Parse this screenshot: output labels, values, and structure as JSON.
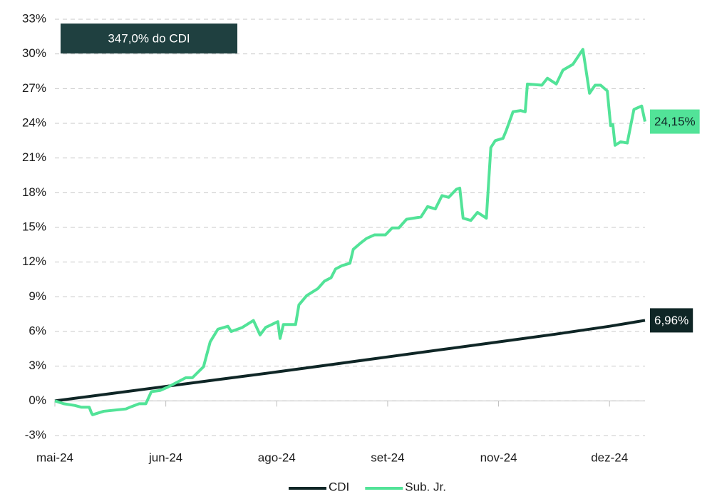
{
  "chart_data": {
    "type": "line",
    "annotation": "347,0% do CDI",
    "xlim": [
      0,
      5.32
    ],
    "xticks": [
      {
        "value": 0,
        "label": "mai-24"
      },
      {
        "value": 1,
        "label": "jun-24"
      },
      {
        "value": 2,
        "label": "ago-24"
      },
      {
        "value": 3,
        "label": "set-24"
      },
      {
        "value": 4,
        "label": "nov-24"
      },
      {
        "value": 5,
        "label": "dez-24"
      }
    ],
    "ylim": [
      -3,
      33
    ],
    "yticks": [
      {
        "value": -3,
        "label": "-3%"
      },
      {
        "value": 0,
        "label": "0%"
      },
      {
        "value": 3,
        "label": "3%"
      },
      {
        "value": 6,
        "label": "6%"
      },
      {
        "value": 9,
        "label": "9%"
      },
      {
        "value": 12,
        "label": "12%"
      },
      {
        "value": 15,
        "label": "15%"
      },
      {
        "value": 18,
        "label": "18%"
      },
      {
        "value": 21,
        "label": "21%"
      },
      {
        "value": 24,
        "label": "24%"
      },
      {
        "value": 27,
        "label": "27%"
      },
      {
        "value": 30,
        "label": "30%"
      },
      {
        "value": 33,
        "label": "33%"
      }
    ],
    "grid": true,
    "legend": "bottom",
    "series": [
      {
        "name": "CDI",
        "color": "#0f2626",
        "last_label": "6,96%",
        "label_text_color": "#ffffff",
        "x": [
          0,
          0.5,
          1,
          1.5,
          2,
          2.5,
          3,
          3.5,
          4,
          4.5,
          5,
          5.32
        ],
        "values": [
          0,
          0.62,
          1.25,
          1.88,
          2.5,
          3.15,
          3.8,
          4.45,
          5.1,
          5.75,
          6.45,
          6.96
        ]
      },
      {
        "name": "Sub. Jr.",
        "color": "#52e398",
        "last_label": "24,15%",
        "label_text_color": "#0f2626",
        "x": [
          0,
          0.08,
          0.18,
          0.24,
          0.31,
          0.33,
          0.34,
          0.44,
          0.54,
          0.64,
          0.69,
          0.76,
          0.82,
          0.87,
          0.95,
          1.02,
          1.08,
          1.18,
          1.24,
          1.34,
          1.4,
          1.47,
          1.56,
          1.59,
          1.69,
          1.79,
          1.85,
          1.9,
          2.01,
          2.03,
          2.06,
          2.17,
          2.2,
          2.27,
          2.37,
          2.43,
          2.49,
          2.53,
          2.59,
          2.66,
          2.69,
          2.75,
          2.81,
          2.88,
          2.98,
          3.04,
          3.1,
          3.17,
          3.3,
          3.36,
          3.43,
          3.49,
          3.55,
          3.62,
          3.65,
          3.68,
          3.75,
          3.81,
          3.89,
          3.93,
          3.97,
          4.04,
          4.07,
          4.13,
          4.2,
          4.24,
          4.26,
          4.39,
          4.44,
          4.52,
          4.58,
          4.67,
          4.76,
          4.82,
          4.87,
          4.92,
          4.98,
          5.01,
          5.03,
          5.05,
          5.1,
          5.16,
          5.22,
          5.29,
          5.32
        ],
        "values": [
          0,
          -0.25,
          -0.4,
          -0.55,
          -0.55,
          -1.05,
          -1.2,
          -0.9,
          -0.8,
          -0.7,
          -0.5,
          -0.25,
          -0.25,
          0.8,
          0.9,
          1.2,
          1.5,
          2.0,
          2.0,
          2.95,
          5.1,
          6.2,
          6.45,
          6.0,
          6.35,
          6.95,
          5.7,
          6.35,
          6.85,
          5.4,
          6.6,
          6.6,
          8.3,
          9.1,
          9.7,
          10.35,
          10.65,
          11.4,
          11.7,
          11.9,
          13.1,
          13.6,
          14.05,
          14.35,
          14.35,
          14.95,
          14.95,
          15.7,
          15.9,
          16.8,
          16.6,
          17.75,
          17.6,
          18.3,
          18.4,
          15.8,
          15.6,
          16.3,
          15.8,
          21.9,
          22.5,
          22.7,
          23.4,
          25.0,
          25.1,
          25.0,
          27.4,
          27.3,
          27.9,
          27.4,
          28.6,
          29.1,
          30.4,
          26.6,
          27.3,
          27.3,
          26.8,
          23.8,
          23.9,
          22.1,
          22.4,
          22.3,
          25.2,
          25.5,
          24.15
        ]
      }
    ]
  }
}
